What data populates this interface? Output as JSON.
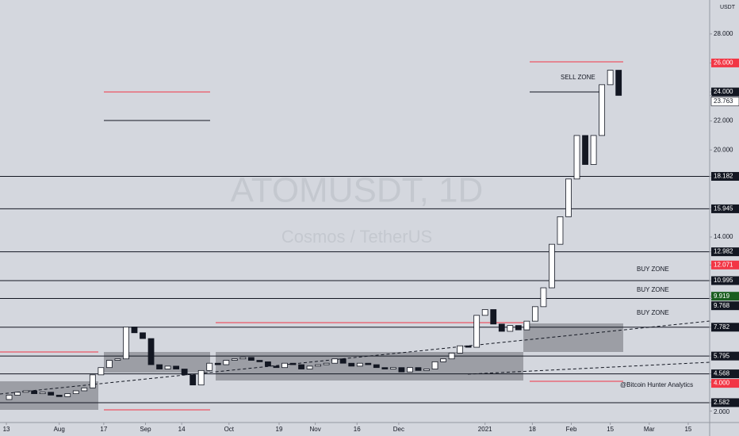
{
  "chart_data": {
    "type": "candlestick",
    "title": "ATOMUSDT, 1D",
    "subtitle": "Cosmos / TetherUS",
    "y_axis_label": "USDT",
    "annotations": [
      "SELL ZONE",
      "BUY ZONE",
      "BUY ZONE",
      "BUY ZONE",
      "@Bitcoin Hunter Analytics"
    ],
    "x": [
      0,
      3,
      6,
      9,
      12,
      15,
      18,
      21,
      24,
      27,
      30,
      33,
      36,
      39,
      42,
      45,
      48,
      51,
      54,
      57,
      60,
      63,
      66,
      69,
      72,
      75,
      78,
      81,
      84,
      87,
      90,
      93,
      96,
      99,
      102,
      105,
      108,
      111,
      114,
      117,
      120,
      123,
      126,
      129,
      132,
      135,
      138,
      141,
      144,
      147,
      150,
      153,
      156,
      159,
      162,
      165,
      168,
      171,
      174,
      177,
      180,
      183,
      186,
      189,
      192,
      195,
      198,
      201,
      204,
      207,
      210,
      213,
      216,
      219,
      222
    ],
    "values": [
      2.8,
      3.1,
      3.3,
      3.4,
      3.2,
      3.3,
      3.1,
      3.0,
      3.2,
      3.4,
      3.6,
      4.5,
      5.0,
      5.5,
      5.6,
      7.8,
      7.4,
      7.0,
      5.2,
      4.9,
      5.1,
      4.9,
      4.5,
      3.8,
      4.8,
      5.3,
      5.2,
      5.5,
      5.6,
      5.7,
      5.5,
      5.4,
      5.1,
      5.0,
      5.3,
      5.2,
      4.9,
      5.1,
      5.2,
      5.3,
      5.6,
      5.3,
      5.1,
      5.3,
      5.2,
      5.0,
      4.9,
      5.0,
      4.7,
      5.0,
      4.8,
      4.9,
      5.4,
      5.6,
      6.0,
      6.5,
      6.4,
      8.6,
      9.0,
      8.0,
      7.5,
      7.9,
      7.6,
      8.2,
      9.2,
      10.5,
      13.5,
      15.4,
      18.0,
      21.0,
      19.0,
      21.0,
      24.5,
      25.5,
      23.763
    ],
    "up_color": "#ffffff",
    "down_color": "#131722",
    "levels": [
      18.182,
      15.945,
      12.982,
      10.995,
      9.768,
      7.782,
      5.795,
      4.568,
      2.582
    ],
    "xlim": [
      0,
      255
    ],
    "xticks": [
      {
        "value": 2,
        "label": "13"
      },
      {
        "value": 21,
        "label": "Aug"
      },
      {
        "value": 37,
        "label": "17"
      },
      {
        "value": 52,
        "label": "Sep"
      },
      {
        "value": 65,
        "label": "14"
      },
      {
        "value": 82,
        "label": "Oct"
      },
      {
        "value": 100,
        "label": "19"
      },
      {
        "value": 113,
        "label": "Nov"
      },
      {
        "value": 128,
        "label": "16"
      },
      {
        "value": 143,
        "label": "Dec"
      },
      {
        "value": 174,
        "label": "2021"
      },
      {
        "value": 191,
        "label": "18"
      },
      {
        "value": 205,
        "label": "Feb"
      },
      {
        "value": 219,
        "label": "15"
      },
      {
        "value": 233,
        "label": "Mar"
      },
      {
        "value": 247,
        "label": "15"
      }
    ],
    "ylim": [
      0.83,
      30.34
    ],
    "yticks": [
      {
        "value": 28,
        "label": "28.000"
      },
      {
        "value": 26,
        "label": "26.000",
        "bg": "#f23645"
      },
      {
        "value": 24,
        "label": "24.000",
        "bg": "#131722"
      },
      {
        "value": 23.763,
        "label": "23.763",
        "bg": "#ffffff"
      },
      {
        "value": 22,
        "label": "22.000"
      },
      {
        "value": 20,
        "label": "20.000"
      },
      {
        "value": 18.182,
        "label": "18.182",
        "bg": "#131722"
      },
      {
        "value": 15.945,
        "label": "15.945",
        "bg": "#131722"
      },
      {
        "value": 14,
        "label": "14.000"
      },
      {
        "value": 12.982,
        "label": "12.982",
        "bg": "#131722"
      },
      {
        "value": 12.071,
        "label": "12.071",
        "bg": "#f23645"
      },
      {
        "value": 10.995,
        "label": "10.995",
        "bg": "#131722"
      },
      {
        "value": 9.919,
        "label": "9.919",
        "bg": "#1b5e20"
      },
      {
        "value": 9.768,
        "label": "9.768",
        "bg": "#131722"
      },
      {
        "value": 7.782,
        "label": "7.782",
        "bg": "#131722"
      },
      {
        "value": 5.795,
        "label": "5.795",
        "bg": "#131722"
      },
      {
        "value": 4.568,
        "label": "4.568",
        "bg": "#131722"
      },
      {
        "value": 4.0,
        "label": "4.000",
        "bg": "#f23645"
      },
      {
        "value": 2.582,
        "label": "2.582",
        "bg": "#131722"
      },
      {
        "value": 2,
        "label": "2.000"
      }
    ]
  }
}
